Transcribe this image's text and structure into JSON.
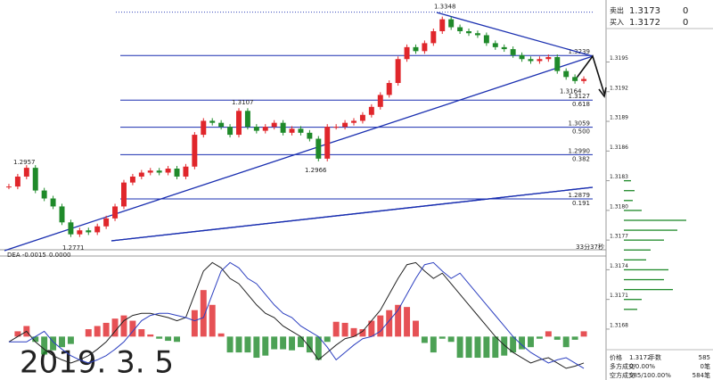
{
  "chart_data": {
    "type": "candlestick",
    "closes": [
      1.291,
      1.2935,
      1.2957,
      1.29,
      1.288,
      1.286,
      1.282,
      1.279,
      1.28,
      1.2795,
      1.281,
      1.283,
      1.286,
      1.292,
      1.2935,
      1.2945,
      1.295,
      1.2945,
      1.2955,
      1.2935,
      1.296,
      1.304,
      1.3075,
      1.307,
      1.306,
      1.304,
      1.31,
      1.306,
      1.305,
      1.306,
      1.307,
      1.3045,
      1.3055,
      1.3045,
      1.303,
      1.298,
      1.306,
      1.306,
      1.307,
      1.3075,
      1.309,
      1.311,
      1.314,
      1.317,
      1.323,
      1.326,
      1.325,
      1.327,
      1.33,
      1.333,
      1.331,
      1.33,
      1.3295,
      1.329,
      1.327,
      1.326,
      1.3255,
      1.324,
      1.323,
      1.3225,
      1.323,
      1.3235,
      1.32,
      1.3185,
      1.3175,
      1.318
    ],
    "ylim": [
      1.274,
      1.3356
    ],
    "up_color": "#e0262b",
    "down_color": "#1f8a2a",
    "high_labels": [
      1.2957,
      1.3107,
      1.3348
    ],
    "low_labels": [
      1.3164,
      1.2966,
      1.2771
    ],
    "top_level": 1.3239,
    "fib_levels": [
      {
        "price": 1.3127,
        "ratio": 0.618
      },
      {
        "price": {
          "value": 1.3059,
          "label": "1.3059"
        },
        "ratio": {
          "value": 0.5,
          "label": "0.500"
        }
      },
      {
        "price": {
          "value": 1.299,
          "label": "1.2990"
        },
        "ratio": 0.382
      },
      {
        "price": 1.2879,
        "ratio": 0.191
      }
    ],
    "dea_label": "DEA -0.0015",
    "zero_label": "0.0000",
    "countdown": "33分37秒",
    "macd": {
      "dif": [
        -5,
        0,
        5,
        -5,
        -12,
        -18,
        -22,
        -25,
        -22,
        -18,
        -12,
        -5,
        5,
        15,
        20,
        22,
        22,
        20,
        18,
        15,
        18,
        40,
        62,
        70,
        65,
        55,
        50,
        40,
        30,
        22,
        18,
        10,
        5,
        0,
        -10,
        -22,
        -15,
        -8,
        -2,
        0,
        5,
        15,
        25,
        40,
        55,
        68,
        70,
        62,
        55,
        60,
        50,
        40,
        30,
        20,
        10,
        0,
        -8,
        -15,
        -20,
        -25,
        -22,
        -20,
        -25,
        -30,
        -28,
        -25
      ],
      "dea": [
        -5,
        -5,
        -5,
        0,
        5,
        -5,
        -12,
        -18,
        -22,
        -25,
        -22,
        -18,
        -12,
        -5,
        5,
        15,
        20,
        22,
        22,
        20,
        18,
        15,
        18,
        40,
        62,
        70,
        65,
        55,
        50,
        40,
        30,
        22,
        18,
        10,
        5,
        0,
        -10,
        -22,
        -15,
        -8,
        -2,
        0,
        5,
        15,
        25,
        40,
        55,
        68,
        70,
        62,
        55,
        60,
        50,
        40,
        30,
        20,
        10,
        0,
        -8,
        -15,
        -20,
        -25,
        -22,
        -20,
        -25,
        -30
      ],
      "hist": [
        0,
        5,
        10,
        -5,
        -17,
        -13,
        -10,
        -7,
        0,
        7,
        10,
        13,
        17,
        20,
        15,
        7,
        2,
        -2,
        -4,
        -5,
        0,
        25,
        44,
        30,
        3,
        -15,
        -15,
        -15,
        -20,
        -18,
        -12,
        -12,
        -13,
        -10,
        -15,
        -22,
        -5,
        14,
        13,
        8,
        7,
        15,
        20,
        25,
        30,
        28,
        15,
        -6,
        -15,
        -2,
        -5,
        -20,
        -20,
        -20,
        -20,
        -20,
        -18,
        -15,
        -12,
        -10,
        -2,
        5,
        -3,
        -10,
        -3,
        5
      ],
      "lim": [
        -36,
        72
      ]
    },
    "quote": [
      {
        "label": "卖出",
        "price": "1.3173",
        "qty": "0"
      },
      {
        "label": "买入",
        "price": "1.3172",
        "qty": "0"
      }
    ],
    "profile": {
      "ylim": [
        1.31661,
        1.31982
      ],
      "yticks": [
        1.3195,
        1.3192,
        1.3189,
        1.3186,
        1.3183,
        {
          "value": 1.318,
          "label": "1.3180"
        },
        1.3177,
        1.3174,
        1.3171,
        1.3168
      ],
      "prices": [
        1.3183,
        1.3182,
        1.3181,
        1.318,
        1.3179,
        1.3178,
        1.3177,
        1.3176,
        1.3175,
        1.3174,
        1.3173,
        1.3172,
        1.3171,
        1.317
      ],
      "volumes": [
        8,
        12,
        10,
        20,
        70,
        60,
        45,
        30,
        25,
        50,
        45,
        55,
        20,
        15
      ],
      "color": "#1f8a2a"
    },
    "info": [
      [
        "价格",
        "1.3172",
        "手数",
        "585"
      ],
      [
        "多方成交",
        "0/0.00%",
        "0笔"
      ],
      [
        "空方成交",
        "585/100.00%",
        "584笔"
      ]
    ],
    "date_stamp": "2019. 3. 5"
  }
}
